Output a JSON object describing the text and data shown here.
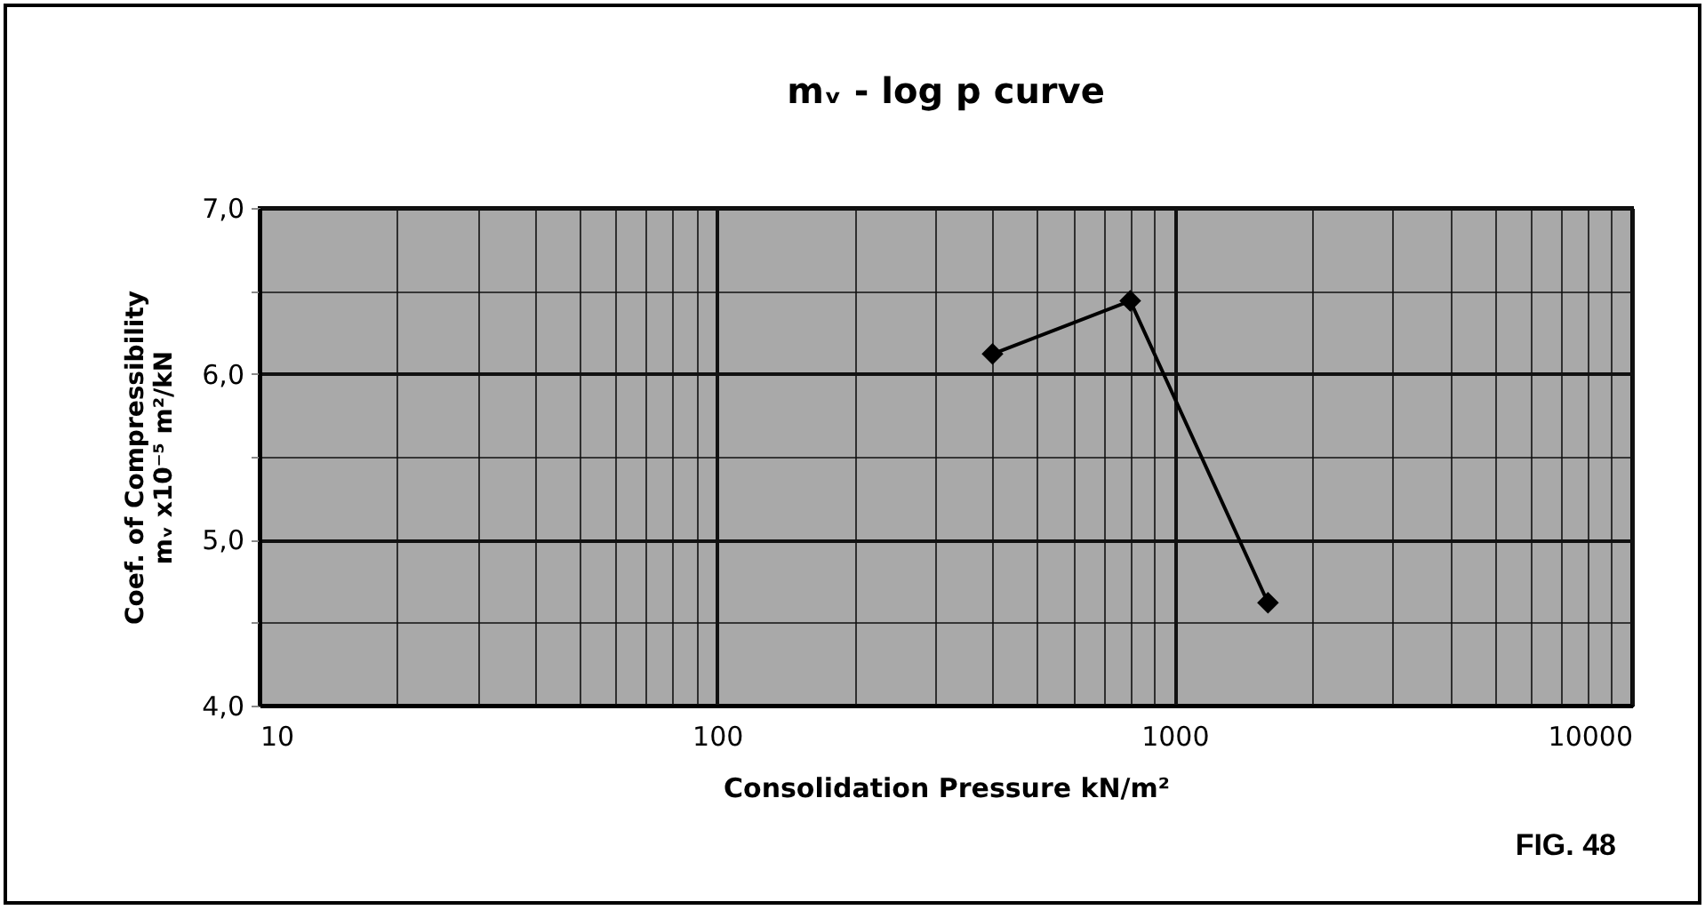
{
  "chart_data": {
    "type": "line",
    "title": "mᵥ - log p curve",
    "xlabel": "Consolidation Pressure kN/m²",
    "ylabel": "Coef. of Compressibility\nmᵥ x10⁻⁵ m²/kN",
    "x": [
      400,
      800,
      1600
    ],
    "series": [
      {
        "color": "#000000",
        "values": [
          6.12,
          6.44,
          4.62
        ]
      }
    ],
    "log": "x",
    "xlim": [
      10,
      10000
    ],
    "xticks": [
      10,
      {
        "value": 20,
        "label": null
      },
      {
        "value": 30,
        "label": null
      },
      {
        "value": 40,
        "label": null
      },
      {
        "value": 50,
        "label": null
      },
      {
        "value": 60,
        "label": null
      },
      {
        "value": 70,
        "label": null
      },
      {
        "value": 80,
        "label": null
      },
      {
        "value": 90,
        "label": null
      },
      100,
      {
        "value": 200,
        "label": null
      },
      {
        "value": 300,
        "label": null
      },
      {
        "value": 400,
        "label": null
      },
      {
        "value": 500,
        "label": null
      },
      {
        "value": 600,
        "label": null
      },
      {
        "value": 700,
        "label": null
      },
      {
        "value": 800,
        "label": null
      },
      {
        "value": 900,
        "label": null
      },
      1000,
      {
        "value": 2000,
        "label": null
      },
      {
        "value": 3000,
        "label": null
      },
      {
        "value": 4000,
        "label": null
      },
      {
        "value": 5000,
        "label": null
      },
      {
        "value": 6000,
        "label": null
      },
      {
        "value": 7000,
        "label": null
      },
      {
        "value": 8000,
        "label": null
      },
      {
        "value": 9000,
        "label": null
      },
      10000
    ],
    "ylim": [
      4,
      7
    ],
    "yticks": [
      {
        "value": 4,
        "label": "4,0"
      },
      {
        "value": 4.5,
        "label": null
      },
      {
        "value": 5,
        "label": "5,0"
      },
      {
        "value": 5.5,
        "label": null
      },
      {
        "value": 6,
        "label": "6,0"
      },
      {
        "value": 6.5,
        "label": null
      },
      {
        "value": 7,
        "label": "7,0"
      }
    ],
    "grid": true,
    "legend": false,
    "marker": "diamond",
    "line_style": "solid",
    "annotations": [
      "FIG. 48"
    ]
  }
}
